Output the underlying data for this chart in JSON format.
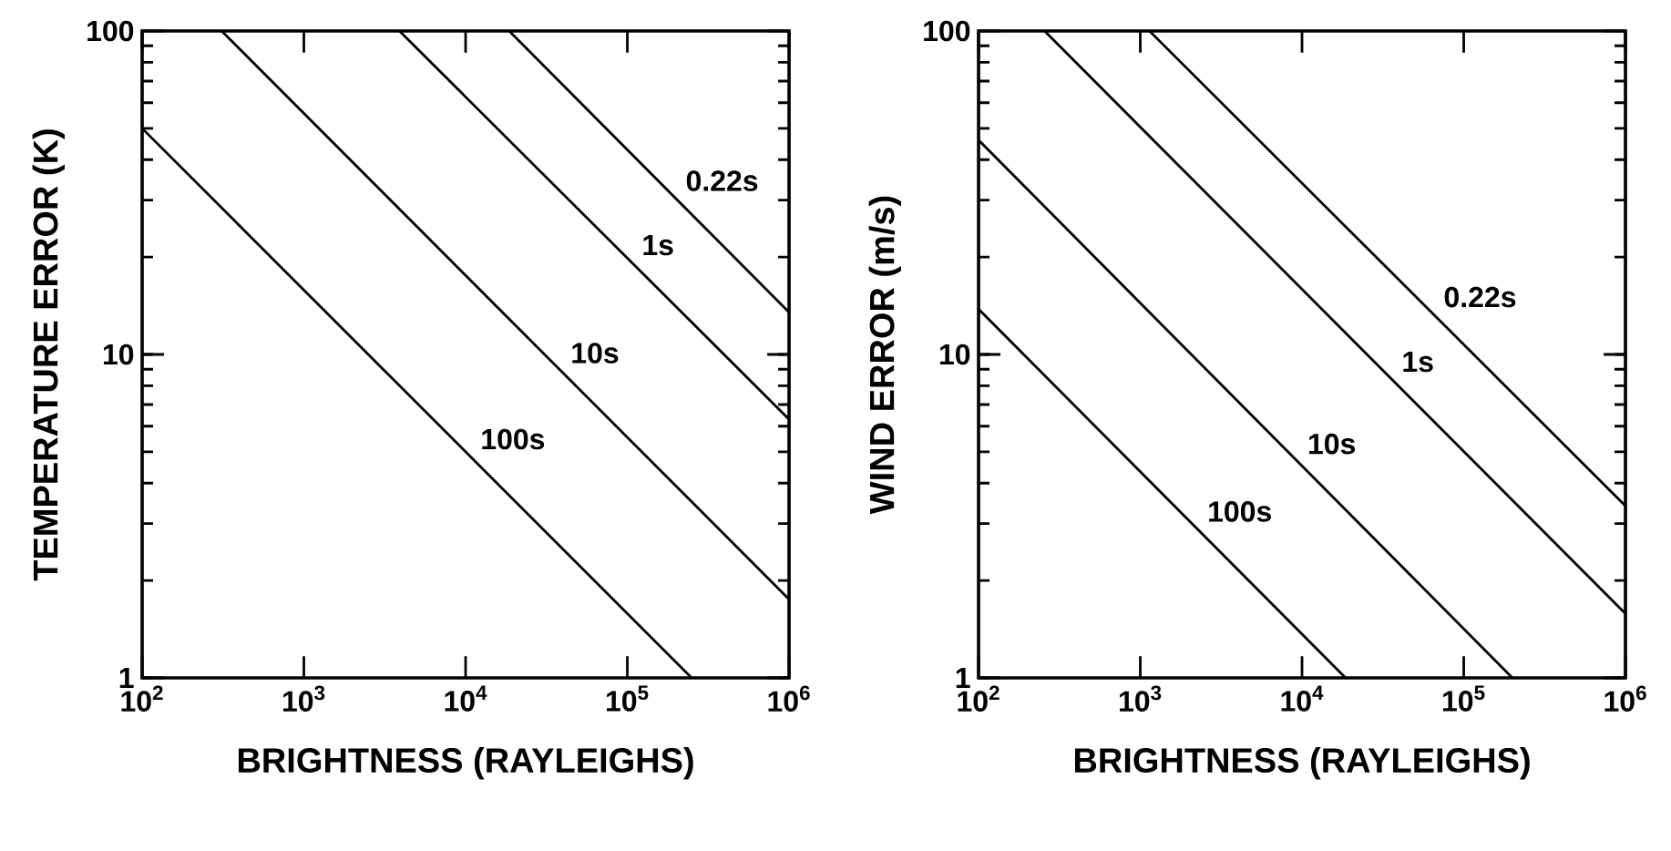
{
  "chart_data": [
    {
      "type": "line",
      "xlabel": "BRIGHTNESS (RAYLEIGHS)",
      "ylabel": "TEMPERATURE ERROR (K)",
      "log": "xy",
      "xlim": [
        100,
        1000000
      ],
      "ylim": [
        1,
        100
      ],
      "xticks": [
        {
          "value": 100,
          "label": "10$^{2}$"
        },
        {
          "value": 1000,
          "label": "10$^{3}$"
        },
        {
          "value": 10000,
          "label": "10$^{4}$"
        },
        {
          "value": 100000,
          "label": "10$^{5}$"
        },
        {
          "value": 1000000,
          "label": "10$^{6}$"
        }
      ],
      "yticks": [
        1,
        10,
        100
      ],
      "grid": false,
      "marker": "none",
      "line_style": "solid",
      "series": [
        {
          "name": "0.22s",
          "color": "#000000",
          "x": [
            18600,
            1000000
          ],
          "values": [
            100,
            13.5
          ]
        },
        {
          "name": "1s",
          "color": "#000000",
          "x": [
            3900,
            1000000
          ],
          "values": [
            100,
            6.3
          ]
        },
        {
          "name": "10s",
          "color": "#000000",
          "x": [
            310,
            1000000
          ],
          "values": [
            100,
            1.75
          ]
        },
        {
          "name": "100s",
          "color": "#000000",
          "x": [
            100,
            250000
          ],
          "values": [
            50,
            1
          ]
        }
      ]
    },
    {
      "type": "line",
      "xlabel": "BRIGHTNESS (RAYLEIGHS)",
      "ylabel": "WIND ERROR (m/s)",
      "log": "xy",
      "xlim": [
        100,
        1000000
      ],
      "ylim": [
        1,
        100
      ],
      "xticks": [
        {
          "value": 100,
          "label": "10$^{2}$"
        },
        {
          "value": 1000,
          "label": "10$^{3}$"
        },
        {
          "value": 10000,
          "label": "10$^{4}$"
        },
        {
          "value": 100000,
          "label": "10$^{5}$"
        },
        {
          "value": 1000000,
          "label": "10$^{6}$"
        }
      ],
      "yticks": [
        1,
        10,
        100
      ],
      "grid": false,
      "marker": "none",
      "line_style": "solid",
      "series": [
        {
          "name": "0.22s",
          "color": "#000000",
          "x": [
            1140,
            1000000
          ],
          "values": [
            100,
            3.4
          ]
        },
        {
          "name": "1s",
          "color": "#000000",
          "x": [
            256,
            1000000
          ],
          "values": [
            100,
            1.58
          ]
        },
        {
          "name": "10s",
          "color": "#000000",
          "x": [
            100,
            200000
          ],
          "values": [
            46,
            1
          ]
        },
        {
          "name": "100s",
          "color": "#000000",
          "x": [
            100,
            18600
          ],
          "values": [
            13.8,
            1
          ]
        }
      ]
    }
  ]
}
